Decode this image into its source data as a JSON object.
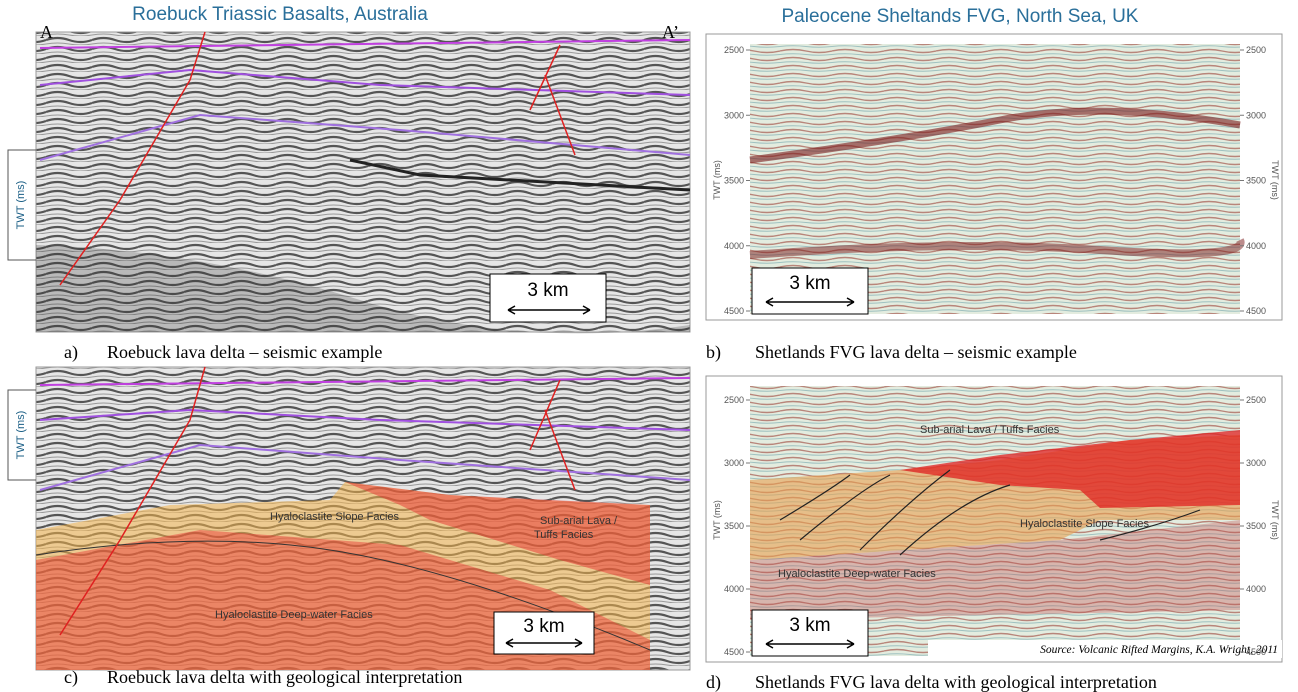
{
  "columns": [
    "Roebuck Triassic Basalts, Australia",
    "Paleocene Sheltands FVG, North Sea, UK"
  ],
  "panel_a": {
    "letter": "a)",
    "caption": "Roebuck lava delta – seismic example",
    "label_left": "A",
    "label_right": "A’",
    "axis_label": "TWT (ms)",
    "scale": "3 km"
  },
  "panel_b": {
    "letter": "b)",
    "caption": "Shetlands FVG lava delta – seismic example",
    "axis_label_left": "TWT (ms)",
    "axis_label_right": "TWT (ms)",
    "ticks_left": [
      2500,
      3000,
      3500,
      4000,
      4500
    ],
    "ticks_right": [
      2500,
      3000,
      3500,
      4000,
      4500
    ],
    "scale": "3 km"
  },
  "panel_c": {
    "letter": "c)",
    "caption": "Roebuck lava delta with geological interpretation",
    "axis_label": "TWT (ms)",
    "scale": "3 km",
    "facies": [
      "Hyaloclastite Slope Facies",
      "Sub-arial Lava /",
      "Tuffs Facies",
      "Hyaloclastite Deep-water Facies"
    ]
  },
  "panel_d": {
    "letter": "d)",
    "caption": "Shetlands FVG lava delta with geological interpretation",
    "axis_label_left": "TWT (ms)",
    "axis_label_right": "TWT (ms)",
    "ticks_left": [
      2500,
      3000,
      3500,
      4000,
      4500
    ],
    "ticks_right": [
      2500,
      3000,
      3500,
      4000,
      4500
    ],
    "scale": "3 km",
    "facies": [
      "Sub-arial Lava / Tuffs Facies",
      "Hyaloclastite Slope Facies",
      "Hyaloclastite Deep-water Facies"
    ],
    "source": "Source: Volcanic Rifted Margins, K.A. Wright, 2011"
  }
}
